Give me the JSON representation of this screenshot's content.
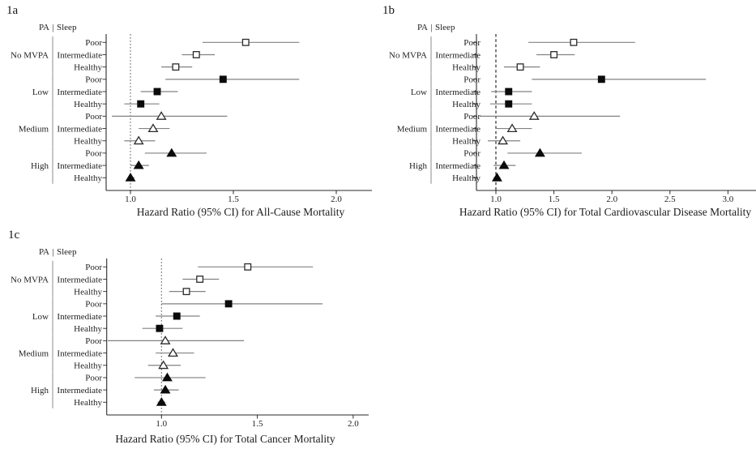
{
  "figure": {
    "background": "#ffffff",
    "text_color": "#1f1f1f",
    "axis_color": "#2a2a2a",
    "ci_line_color": "#828282",
    "separator_color": "#a0a0a0",
    "marker_fill_color": "#0b0b0b",
    "marker_open_stroke": "#2b2b2b",
    "ref_line_dotted_color": "#6f6f6f",
    "ref_line_dashed_color": "#161616"
  },
  "chart_data": [
    {
      "type": "scatter",
      "variant": "forest",
      "panel_tag": "1a",
      "header": {
        "pa": "PA",
        "divider": "|",
        "sleep": "Sleep"
      },
      "xlabel": "Hazard Ratio (95% CI) for All-Cause Mortality",
      "x_ticks": [
        "1.0",
        "1.5",
        "2.0"
      ],
      "xlim": [
        0.88,
        2.17
      ],
      "reference_line": 1.0,
      "legend": "none",
      "grid": "off",
      "groups": [
        {
          "pa": "No MVPA",
          "marker": "open-square",
          "rows": [
            {
              "sleep": "Poor",
              "hr": 1.56,
              "ci": [
                1.35,
                1.82
              ]
            },
            {
              "sleep": "Intermediate",
              "hr": 1.32,
              "ci": [
                1.25,
                1.41
              ]
            },
            {
              "sleep": "Healthy",
              "hr": 1.22,
              "ci": [
                1.15,
                1.3
              ]
            }
          ]
        },
        {
          "pa": "Low",
          "marker": "filled-square",
          "rows": [
            {
              "sleep": "Poor",
              "hr": 1.45,
              "ci": [
                1.17,
                1.82
              ]
            },
            {
              "sleep": "Intermediate",
              "hr": 1.13,
              "ci": [
                1.05,
                1.23
              ]
            },
            {
              "sleep": "Healthy",
              "hr": 1.05,
              "ci": [
                0.97,
                1.14
              ]
            }
          ]
        },
        {
          "pa": "Medium",
          "marker": "open-triangle",
          "rows": [
            {
              "sleep": "Poor",
              "hr": 1.15,
              "ci": [
                0.91,
                1.47
              ]
            },
            {
              "sleep": "Intermediate",
              "hr": 1.11,
              "ci": [
                1.04,
                1.19
              ]
            },
            {
              "sleep": "Healthy",
              "hr": 1.04,
              "ci": [
                0.97,
                1.12
              ]
            }
          ]
        },
        {
          "pa": "High",
          "marker": "filled-triangle",
          "rows": [
            {
              "sleep": "Poor",
              "hr": 1.2,
              "ci": [
                1.07,
                1.37
              ]
            },
            {
              "sleep": "Intermediate",
              "hr": 1.04,
              "ci": [
                1.0,
                1.09
              ]
            },
            {
              "sleep": "Healthy",
              "hr": 1.0,
              "ci": [
                0.99,
                1.02
              ]
            }
          ]
        }
      ]
    },
    {
      "type": "scatter",
      "variant": "forest",
      "panel_tag": "1b",
      "header": {
        "pa": "PA",
        "divider": "|",
        "sleep": "Sleep"
      },
      "xlabel": "Hazard Ratio (95% CI) for Total Cardiovascular Disease Mortality",
      "x_ticks": [
        "1.0",
        "1.5",
        "2.0",
        "2.5",
        "3.0"
      ],
      "xlim": [
        0.83,
        3.24
      ],
      "reference_line": 1.0,
      "legend": "none",
      "grid": "off",
      "groups": [
        {
          "pa": "No MVPA",
          "marker": "open-square",
          "rows": [
            {
              "sleep": "Poor",
              "hr": 1.67,
              "ci": [
                1.28,
                2.2
              ]
            },
            {
              "sleep": "Intermediate",
              "hr": 1.5,
              "ci": [
                1.35,
                1.68
              ]
            },
            {
              "sleep": "Healthy",
              "hr": 1.21,
              "ci": [
                1.07,
                1.38
              ]
            }
          ]
        },
        {
          "pa": "Low",
          "marker": "filled-square",
          "rows": [
            {
              "sleep": "Poor",
              "hr": 1.91,
              "ci": [
                1.31,
                2.81
              ]
            },
            {
              "sleep": "Intermediate",
              "hr": 1.11,
              "ci": [
                0.96,
                1.31
              ]
            },
            {
              "sleep": "Healthy",
              "hr": 1.11,
              "ci": [
                0.95,
                1.31
              ]
            }
          ]
        },
        {
          "pa": "Medium",
          "marker": "open-triangle",
          "rows": [
            {
              "sleep": "Poor",
              "hr": 1.33,
              "ci": [
                0.86,
                2.07
              ]
            },
            {
              "sleep": "Intermediate",
              "hr": 1.14,
              "ci": [
                1.0,
                1.31
              ]
            },
            {
              "sleep": "Healthy",
              "hr": 1.06,
              "ci": [
                0.93,
                1.21
              ]
            }
          ]
        },
        {
          "pa": "High",
          "marker": "filled-triangle",
          "rows": [
            {
              "sleep": "Poor",
              "hr": 1.38,
              "ci": [
                1.1,
                1.74
              ]
            },
            {
              "sleep": "Intermediate",
              "hr": 1.07,
              "ci": [
                0.98,
                1.17
              ]
            },
            {
              "sleep": "Healthy",
              "hr": 1.01,
              "ci": [
                0.98,
                1.04
              ]
            }
          ]
        }
      ]
    },
    {
      "type": "scatter",
      "variant": "forest",
      "panel_tag": "1c",
      "header": {
        "pa": "PA",
        "divider": "|",
        "sleep": "Sleep"
      },
      "xlabel": "Hazard Ratio (95% CI) for Total Cancer Mortality",
      "x_ticks": [
        "1.0",
        "1.5",
        "2.0"
      ],
      "xlim": [
        0.71,
        2.08
      ],
      "reference_line": 1.0,
      "legend": "none",
      "grid": "off",
      "groups": [
        {
          "pa": "No MVPA",
          "marker": "open-square",
          "rows": [
            {
              "sleep": "Poor",
              "hr": 1.45,
              "ci": [
                1.19,
                1.79
              ]
            },
            {
              "sleep": "Intermediate",
              "hr": 1.2,
              "ci": [
                1.11,
                1.3
              ]
            },
            {
              "sleep": "Healthy",
              "hr": 1.13,
              "ci": [
                1.04,
                1.23
              ]
            }
          ]
        },
        {
          "pa": "Low",
          "marker": "filled-square",
          "rows": [
            {
              "sleep": "Poor",
              "hr": 1.35,
              "ci": [
                1.0,
                1.84
              ]
            },
            {
              "sleep": "Intermediate",
              "hr": 1.08,
              "ci": [
                0.97,
                1.2
              ]
            },
            {
              "sleep": "Healthy",
              "hr": 0.99,
              "ci": [
                0.9,
                1.11
              ]
            }
          ]
        },
        {
          "pa": "Medium",
          "marker": "open-triangle",
          "rows": [
            {
              "sleep": "Poor",
              "hr": 1.02,
              "ci": [
                0.72,
                1.43
              ]
            },
            {
              "sleep": "Intermediate",
              "hr": 1.06,
              "ci": [
                0.97,
                1.17
              ]
            },
            {
              "sleep": "Healthy",
              "hr": 1.01,
              "ci": [
                0.93,
                1.1
              ]
            }
          ]
        },
        {
          "pa": "High",
          "marker": "filled-triangle",
          "rows": [
            {
              "sleep": "Poor",
              "hr": 1.03,
              "ci": [
                0.86,
                1.23
              ]
            },
            {
              "sleep": "Intermediate",
              "hr": 1.02,
              "ci": [
                0.96,
                1.09
              ]
            },
            {
              "sleep": "Healthy",
              "hr": 1.0,
              "ci": [
                0.98,
                1.02
              ]
            }
          ]
        }
      ]
    }
  ]
}
